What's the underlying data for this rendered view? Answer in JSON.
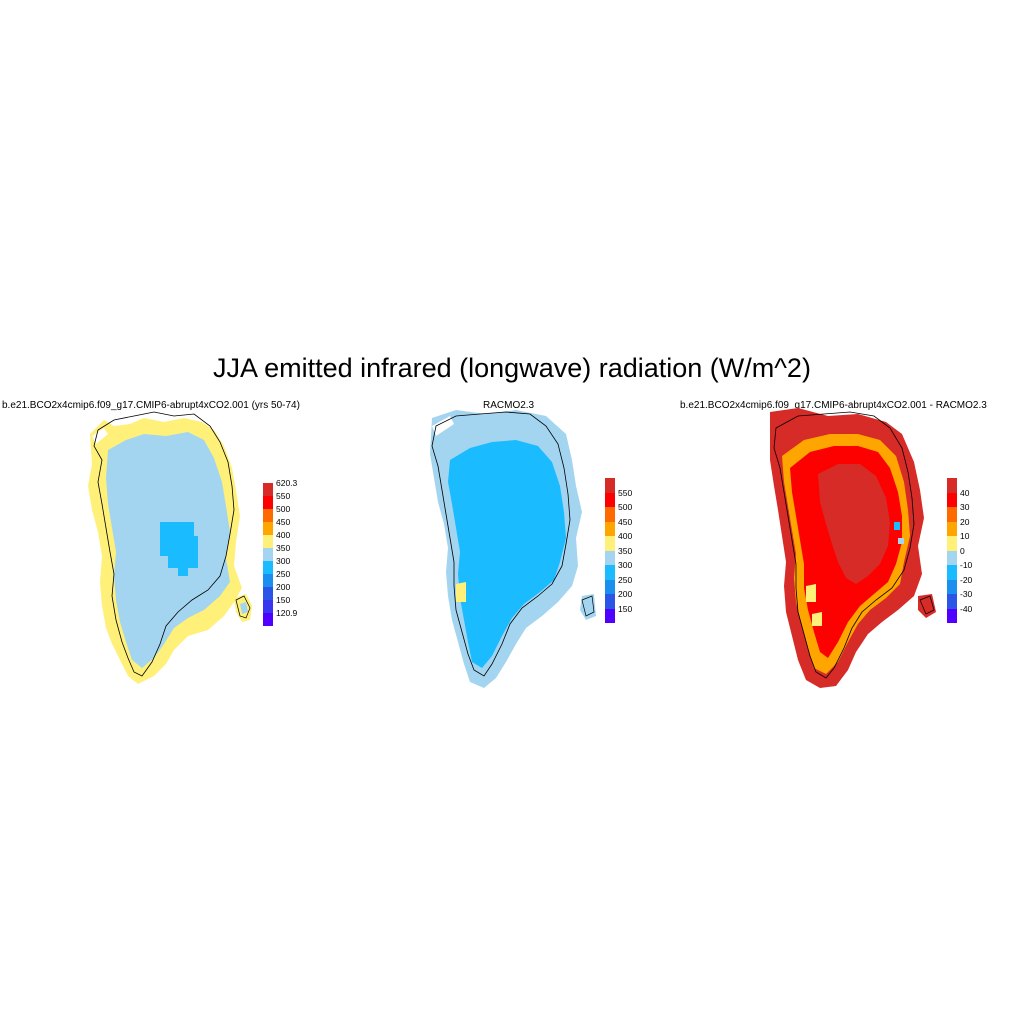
{
  "title": "JJA emitted infrared (longwave) radiation (W/m^2)",
  "panels": [
    {
      "id": "model",
      "title": "b.e21.BCO2x4cmip6.f09_g17.CMIP6-abrupt4xCO2.001 (yrs 50-74)",
      "colorbar": {
        "labels": [
          "620.3",
          "550",
          "500",
          "450",
          "400",
          "350",
          "300",
          "250",
          "200",
          "150",
          "120.9"
        ],
        "colors": [
          "#d62b27",
          "#fd0000",
          "#ff6a00",
          "#ffa500",
          "#fff07a",
          "#a4d5f0",
          "#1bbcff",
          "#1a8ff0",
          "#2a55e6",
          "#3a35f0",
          "#5000ff"
        ]
      }
    },
    {
      "id": "obs",
      "title": "RACMO2.3",
      "colorbar": {
        "labels": [
          "550",
          "500",
          "450",
          "400",
          "350",
          "300",
          "250",
          "200",
          "150"
        ],
        "colors": [
          "#d62b27",
          "#fd0000",
          "#ff6a00",
          "#ffa500",
          "#fff07a",
          "#a4d5f0",
          "#1bbcff",
          "#1a8ff0",
          "#2a55e6",
          "#5000ff"
        ]
      }
    },
    {
      "id": "diff",
      "title": "b.e21.BCO2x4cmip6.f09_g17.CMIP6-abrupt4xCO2.001 - RACMO2.3",
      "colorbar": {
        "labels": [
          "40",
          "30",
          "20",
          "10",
          "0",
          "-10",
          "-20",
          "-30",
          "-40"
        ],
        "colors": [
          "#d62b27",
          "#fd0000",
          "#ff6a00",
          "#ffa500",
          "#fff07a",
          "#a4d5f0",
          "#1bbcff",
          "#1a8ff0",
          "#2a55e6",
          "#5000ff"
        ]
      }
    }
  ]
}
